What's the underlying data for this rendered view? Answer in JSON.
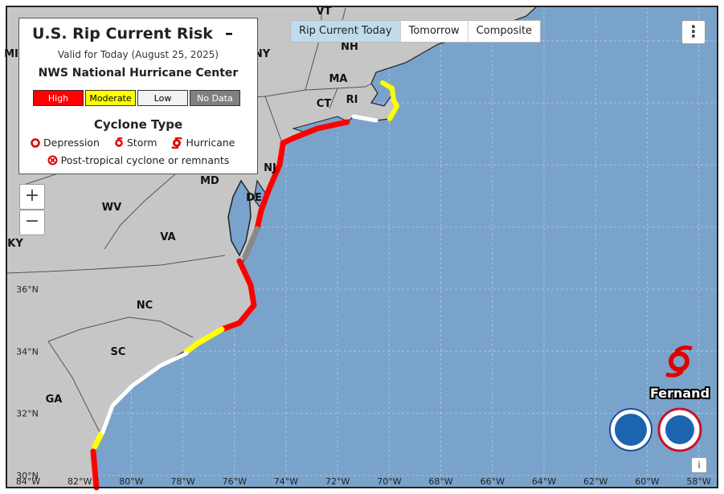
{
  "legend": {
    "title": "U.S. Rip Current Risk",
    "valid": "Valid for Today (August 25, 2025)",
    "source": "NWS National Hurricane Center",
    "risk_levels": [
      {
        "label": "High",
        "color": "#ff0000"
      },
      {
        "label": "Moderate",
        "color": "#ffff00"
      },
      {
        "label": "Low",
        "color": "#f2f2f2"
      },
      {
        "label": "No Data",
        "color": "#808080"
      }
    ],
    "cyclone_heading": "Cyclone Type",
    "cyclone_types": [
      "Depression",
      "Storm",
      "Hurricane"
    ],
    "post_tropical": "Post-tropical cyclone or remnants"
  },
  "tabs": [
    "Rip Current Today",
    "Tomorrow",
    "Composite"
  ],
  "state_labels": [
    "VT",
    "NH",
    "MA",
    "CT",
    "RI",
    "NY",
    "NJ",
    "DE",
    "MD",
    "WV",
    "VA",
    "KY",
    "NC",
    "SC",
    "GA",
    "MI"
  ],
  "latitude_labels": [
    "36°N",
    "34°N",
    "32°N",
    "30°N"
  ],
  "longitude_labels": [
    "84°W",
    "82°W",
    "80°W",
    "78°W",
    "76°W",
    "74°W",
    "72°W",
    "70°W",
    "68°W",
    "66°W",
    "64°W",
    "62°W",
    "60°W",
    "58°W"
  ],
  "storm": {
    "name": "Fernand"
  }
}
